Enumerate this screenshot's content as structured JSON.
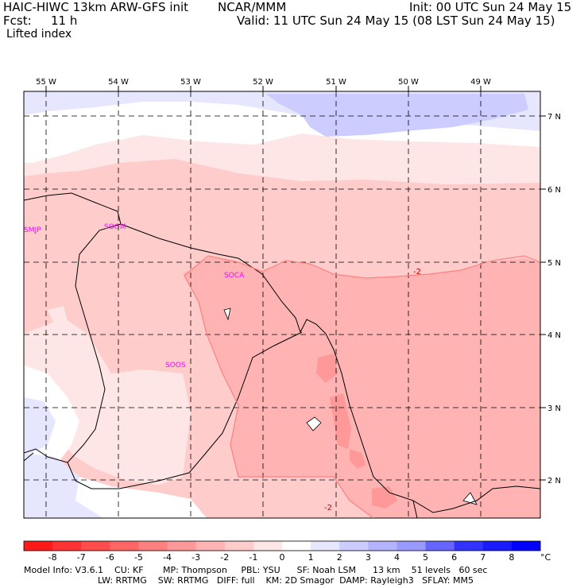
{
  "header": {
    "model": "HAIC-HIWC 13km ARW-GFS init",
    "org": "NCAR/MMM",
    "init": "Init: 00 UTC Sun 24 May 15",
    "fcst_label": "Fcst:",
    "fcst_value": "11 h",
    "valid": "Valid: 11 UTC Sun 24 May 15 (08 LST Sun 24 May 15)",
    "field": "Lifted index"
  },
  "map": {
    "lon_labels": [
      "55 W",
      "54 W",
      "53 W",
      "52 W",
      "51 W",
      "50 W",
      "49 W"
    ],
    "lat_labels": [
      "7 N",
      "6 N",
      "5 N",
      "4 N",
      "3 N",
      "2 N"
    ],
    "stations": [
      "SMJP",
      "SOGM",
      "SOCA",
      "SOOS"
    ],
    "contour_labels": [
      "-2",
      "-2"
    ]
  },
  "colorbar": {
    "labels": [
      "-8",
      "-7",
      "-6",
      "-5",
      "-4",
      "-3",
      "-2",
      "-1",
      "0",
      "1",
      "2",
      "3",
      "4",
      "5",
      "6",
      "7",
      "8"
    ],
    "unit": "°C",
    "colors": [
      "#ff1a1a",
      "#ff3333",
      "#ff4d4d",
      "#ff6666",
      "#ff8080",
      "#ff9999",
      "#ffb3b3",
      "#ffcccc",
      "#ffe6e6",
      "#ffffff",
      "#e6e6ff",
      "#ccccff",
      "#b3b3ff",
      "#9999ff",
      "#6666ff",
      "#3333ff",
      "#1a1aff",
      "#0000ff"
    ]
  },
  "footer": {
    "line1": "Model Info: V3.6.1    CU: KF       MP: Thompson     PBL: YSU      SF: Noah LSM      13 km    51 levels   60 sec",
    "line2": "LW: RRTMG    SW: RRTMG   DIFF: full    KM: 2D Smagor  DAMP: Rayleigh3   SFLAY: MM5"
  }
}
